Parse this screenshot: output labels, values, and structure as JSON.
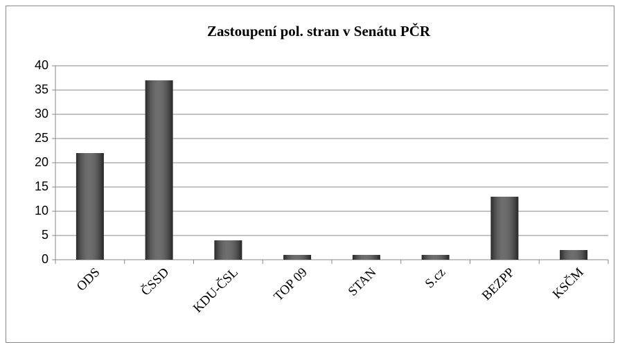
{
  "chart_data": {
    "type": "bar",
    "title": "Zastoupení pol. stran v Senátu PČR",
    "categories": [
      "ODS",
      "ČSSD",
      "KDU-ČSL",
      "TOP 09",
      "STAN",
      "S.cz",
      "BEZPP",
      "KSČM"
    ],
    "values": [
      22,
      37,
      4,
      1,
      1,
      1,
      13,
      2
    ],
    "color": "#4a4a4a",
    "ylim": [
      0,
      40
    ],
    "yticks": [
      0,
      5,
      10,
      15,
      20,
      25,
      30,
      35,
      40
    ],
    "grid": true
  }
}
